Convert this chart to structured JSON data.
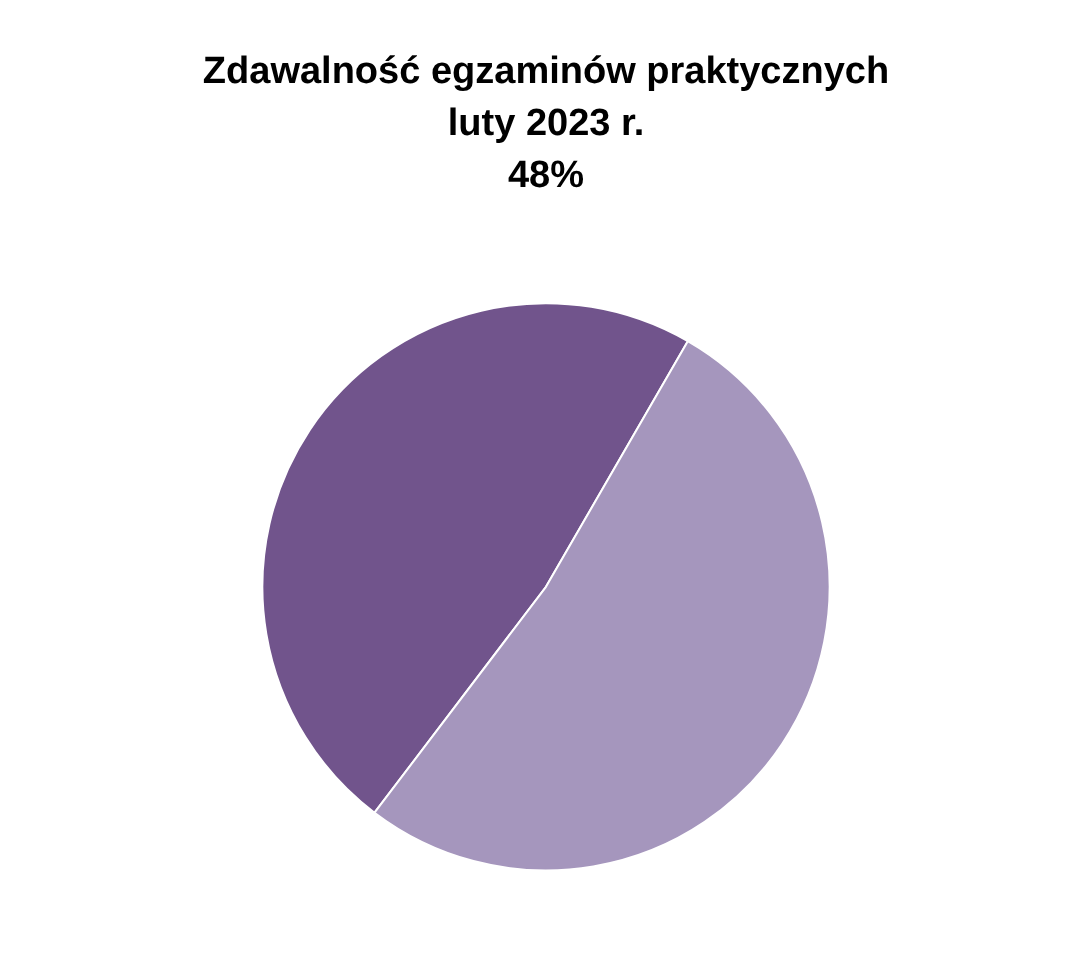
{
  "chart_data": {
    "type": "pie",
    "title": "Zdawalność egzaminów praktycznych\nluty 2023 r.\n48%",
    "categories": [
      null,
      null
    ],
    "values": [
      48,
      52
    ],
    "colors": [
      "#71548c",
      "#a596bd"
    ]
  }
}
